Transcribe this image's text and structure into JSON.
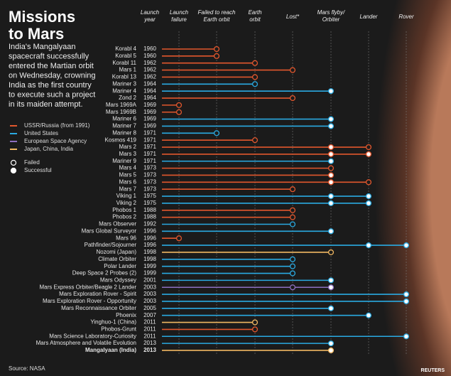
{
  "title": [
    "Missions",
    "to Mars"
  ],
  "intro": [
    "India's Mangalyaan",
    "spacecraft successfully",
    "entered the Martian orbit",
    "on Wednesday, crowning",
    "India as the first country",
    "to execute such a project",
    "in its maiden attempt."
  ],
  "agencies": [
    {
      "name": "USSR/Russia (from 1991)",
      "color": "#e2572d"
    },
    {
      "name": "United States",
      "color": "#2aaae2"
    },
    {
      "name": "European Space Agency",
      "color": "#8d6fc0"
    },
    {
      "name": "Japan, China, India",
      "color": "#f1b862"
    }
  ],
  "statuses": [
    {
      "name": "Failed",
      "filled": false
    },
    {
      "name": "Successful",
      "filled": true
    }
  ],
  "columns": [
    [
      "Launch",
      "year"
    ],
    [
      "Launch",
      "failure"
    ],
    [
      "Failed to reach",
      "Earth orbit"
    ],
    [
      "Earth",
      "orbit"
    ],
    [
      "Lost*"
    ],
    [
      "Mars flyby/",
      "Orbiter"
    ],
    [
      "Lander"
    ],
    [
      "Rover"
    ]
  ],
  "missions": [
    {
      "name": "Korabl 4",
      "year": "1960",
      "agency": 0,
      "markers": [
        [
          1,
          0
        ]
      ]
    },
    {
      "name": "Korabl 5",
      "year": "1960",
      "agency": 0,
      "markers": [
        [
          1,
          0
        ]
      ]
    },
    {
      "name": "Korabl 11",
      "year": "1962",
      "agency": 0,
      "markers": [
        [
          2,
          0
        ]
      ]
    },
    {
      "name": "Mars 1",
      "year": "1962",
      "agency": 0,
      "markers": [
        [
          3,
          0
        ]
      ]
    },
    {
      "name": "Korabl 13",
      "year": "1962",
      "agency": 0,
      "markers": [
        [
          2,
          0
        ]
      ]
    },
    {
      "name": "Mariner 3",
      "year": "1964",
      "agency": 1,
      "markers": [
        [
          2,
          0
        ]
      ]
    },
    {
      "name": "Mariner 4",
      "year": "1964",
      "agency": 1,
      "markers": [
        [
          4,
          1
        ]
      ]
    },
    {
      "name": "Zond 2",
      "year": "1964",
      "agency": 0,
      "markers": [
        [
          3,
          0
        ]
      ]
    },
    {
      "name": "Mars 1969A",
      "year": "1969",
      "agency": 0,
      "markers": [
        [
          0,
          0
        ]
      ]
    },
    {
      "name": "Mars 1969B",
      "year": "1969",
      "agency": 0,
      "markers": [
        [
          0,
          0
        ]
      ]
    },
    {
      "name": "Mariner 6",
      "year": "1969",
      "agency": 1,
      "markers": [
        [
          4,
          1
        ]
      ]
    },
    {
      "name": "Mariner 7",
      "year": "1969",
      "agency": 1,
      "markers": [
        [
          4,
          1
        ]
      ]
    },
    {
      "name": "Mariner 8",
      "year": "1971",
      "agency": 1,
      "markers": [
        [
          1,
          0
        ]
      ]
    },
    {
      "name": "Kosmos 419",
      "year": "1971",
      "agency": 0,
      "markers": [
        [
          2,
          0
        ]
      ]
    },
    {
      "name": "Mars 2",
      "year": "1971",
      "agency": 0,
      "markers": [
        [
          4,
          1
        ],
        [
          5,
          0
        ]
      ]
    },
    {
      "name": "Mars 3",
      "year": "1971",
      "agency": 0,
      "markers": [
        [
          4,
          1
        ],
        [
          5,
          1
        ]
      ]
    },
    {
      "name": "Mariner 9",
      "year": "1971",
      "agency": 1,
      "markers": [
        [
          4,
          1
        ]
      ]
    },
    {
      "name": "Mars 4",
      "year": "1973",
      "agency": 0,
      "markers": [
        [
          4,
          0
        ]
      ]
    },
    {
      "name": "Mars 5",
      "year": "1973",
      "agency": 0,
      "markers": [
        [
          4,
          1
        ]
      ]
    },
    {
      "name": "Mars 6",
      "year": "1973",
      "agency": 0,
      "markers": [
        [
          4,
          1
        ],
        [
          5,
          0
        ]
      ]
    },
    {
      "name": "Mars 7",
      "year": "1973",
      "agency": 0,
      "markers": [
        [
          3,
          0
        ]
      ]
    },
    {
      "name": "Viking 1",
      "year": "1975",
      "agency": 1,
      "markers": [
        [
          4,
          1
        ],
        [
          5,
          1
        ]
      ]
    },
    {
      "name": "Viking 2",
      "year": "1975",
      "agency": 1,
      "markers": [
        [
          4,
          1
        ],
        [
          5,
          1
        ]
      ]
    },
    {
      "name": "Phobos 1",
      "year": "1988",
      "agency": 0,
      "markers": [
        [
          3,
          0
        ]
      ]
    },
    {
      "name": "Phobos 2",
      "year": "1988",
      "agency": 0,
      "markers": [
        [
          3,
          0
        ]
      ]
    },
    {
      "name": "Mars Observer",
      "year": "1992",
      "agency": 1,
      "markers": [
        [
          3,
          0
        ]
      ]
    },
    {
      "name": "Mars Global Surveyor",
      "year": "1996",
      "agency": 1,
      "markers": [
        [
          4,
          1
        ]
      ]
    },
    {
      "name": "Mars 96",
      "year": "1996",
      "agency": 0,
      "markers": [
        [
          0,
          0
        ]
      ]
    },
    {
      "name": "Pathfinder/Sojourner",
      "year": "1996",
      "agency": 1,
      "markers": [
        [
          5,
          1
        ],
        [
          6,
          1
        ]
      ]
    },
    {
      "name": "Nozomi (Japan)",
      "year": "1998",
      "agency": 3,
      "markers": [
        [
          4,
          0
        ]
      ]
    },
    {
      "name": "Climate Orbiter",
      "year": "1998",
      "agency": 1,
      "markers": [
        [
          3,
          0
        ]
      ]
    },
    {
      "name": "Polar Lander",
      "year": "1999",
      "agency": 1,
      "markers": [
        [
          3,
          0
        ]
      ]
    },
    {
      "name": "Deep Space 2 Probes (2)",
      "year": "1999",
      "agency": 1,
      "markers": [
        [
          3,
          0
        ]
      ]
    },
    {
      "name": "Mars Odyssey",
      "year": "2001",
      "agency": 1,
      "markers": [
        [
          4,
          1
        ]
      ]
    },
    {
      "name": "Mars Express Orbiter/Beagle 2 Lander",
      "year": "2003",
      "agency": 2,
      "markers": [
        [
          3,
          0
        ],
        [
          4,
          1
        ]
      ]
    },
    {
      "name": "Mars Exploration Rover - Spirit",
      "year": "2003",
      "agency": 1,
      "markers": [
        [
          6,
          1
        ]
      ]
    },
    {
      "name": "Mars Exploration Rover - Opportunity",
      "year": "2003",
      "agency": 1,
      "markers": [
        [
          6,
          1
        ]
      ]
    },
    {
      "name": "Mars Reconnaissance Orbiter",
      "year": "2005",
      "agency": 1,
      "markers": [
        [
          4,
          1
        ]
      ]
    },
    {
      "name": "Phoenix",
      "year": "2007",
      "agency": 1,
      "markers": [
        [
          5,
          1
        ]
      ]
    },
    {
      "name": "Yinghuo-1 (China)",
      "year": "2011",
      "agency": 3,
      "markers": [
        [
          2,
          0
        ]
      ]
    },
    {
      "name": "Phobos-Grunt",
      "year": "2011",
      "agency": 0,
      "markers": [
        [
          2,
          0
        ]
      ]
    },
    {
      "name": "Mars Science Laboratory-Curiosity",
      "year": "2011",
      "agency": 1,
      "markers": [
        [
          6,
          1
        ]
      ]
    },
    {
      "name": "Mars Atmosphere and Volatile Evolution",
      "year": "2013",
      "agency": 1,
      "markers": [
        [
          4,
          1
        ]
      ]
    },
    {
      "name": "Mangalyaan (India)",
      "year": "2013",
      "agency": 3,
      "markers": [
        [
          4,
          1
        ]
      ],
      "bold": true
    }
  ],
  "source": "Source: NASA",
  "credit": "REUTERS"
}
